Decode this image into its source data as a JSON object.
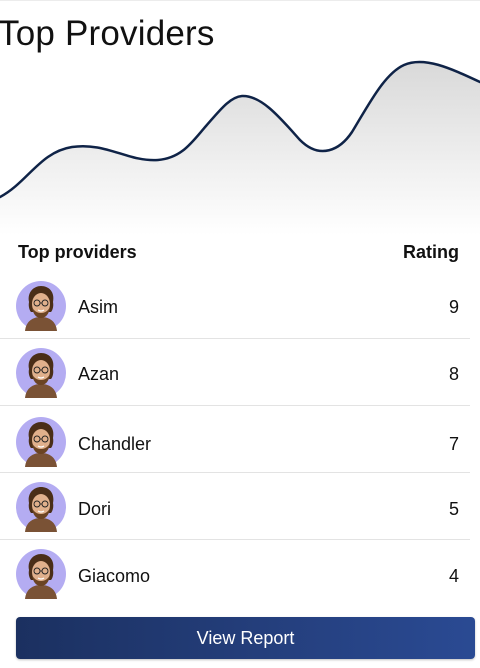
{
  "header": {
    "title": "Top Providers"
  },
  "table": {
    "col_provider": "Top providers",
    "col_rating": "Rating",
    "rows": [
      {
        "name": "Asim",
        "rating": "9"
      },
      {
        "name": "Azan",
        "rating": "8"
      },
      {
        "name": "Chandler",
        "rating": "7"
      },
      {
        "name": "Dori",
        "rating": "5"
      },
      {
        "name": "Giacomo",
        "rating": "4"
      }
    ]
  },
  "actions": {
    "view_report": "View Report"
  },
  "colors": {
    "line": "#0f2347",
    "button": "#25407f",
    "avatar_bg": "#b4acf2"
  },
  "icons": {
    "avatar": "person-avatar-icon"
  }
}
